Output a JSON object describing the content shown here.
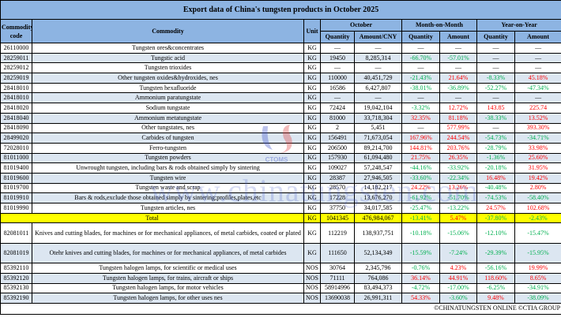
{
  "title": "Export data of China's tungsten products in October 2025",
  "headers": {
    "code": "Commodity code",
    "commodity": "Commodity",
    "unit": "Unit",
    "october": "October",
    "mom": "Month-on-Month",
    "yoy": "Year-on-Year",
    "quantity": "Quantity",
    "amount_cny": "Amount/CNY",
    "amount": "Amount"
  },
  "colors": {
    "header": "#8db4e2",
    "alt_row": "#dce6f1",
    "total": "#ffff00",
    "decrease": "#00b050",
    "increase": "#ff0000"
  },
  "rows": [
    {
      "code": "26110000",
      "commodity": "Tungsten ores&concentrates",
      "unit": "KG",
      "qty": "—",
      "amount": "—",
      "mom_qty": "—",
      "mom_amt": "—",
      "yoy_qty": "—",
      "yoy_amt": "—"
    },
    {
      "code": "28259011",
      "commodity": "Tungstic acid",
      "unit": "KG",
      "qty": "19450",
      "amount": "8,285,314",
      "mom_qty": "-66.70%",
      "mom_amt": "-57.01%",
      "yoy_qty": "—",
      "yoy_amt": "—"
    },
    {
      "code": "28259012",
      "commodity": "Tungsten trioxides",
      "unit": "KG",
      "qty": "—",
      "amount": "—",
      "mom_qty": "—",
      "mom_amt": "—",
      "yoy_qty": "—",
      "yoy_amt": "—"
    },
    {
      "code": "28259019",
      "commodity": "Other tungsten oxides&hydroxides, nes",
      "unit": "KG",
      "qty": "110000",
      "amount": "40,451,729",
      "mom_qty": "-21.43%",
      "mom_amt": "21.64%",
      "yoy_qty": "-8.33%",
      "yoy_amt": "45.18%"
    },
    {
      "code": "28418010",
      "commodity": "Tungsten hexafluoride",
      "unit": "KG",
      "qty": "16586",
      "amount": "6,427,807",
      "mom_qty": "-38.01%",
      "mom_amt": "-36.89%",
      "yoy_qty": "-52.27%",
      "yoy_amt": "-47.34%"
    },
    {
      "code": "28418010",
      "commodity": "Ammonium paratungstate",
      "unit": "KG",
      "qty": "—",
      "amount": "—",
      "mom_qty": "—",
      "mom_amt": "—",
      "yoy_qty": "—",
      "yoy_amt": "—"
    },
    {
      "code": "28418020",
      "commodity": "Sodium tungstate",
      "unit": "KG",
      "qty": "72424",
      "amount": "19,042,104",
      "mom_qty": "-3.32%",
      "mom_amt": "12.72%",
      "yoy_qty": "143.85",
      "yoy_amt": "225.74"
    },
    {
      "code": "28418040",
      "commodity": "Ammonium metatungstate",
      "unit": "KG",
      "qty": "81000",
      "amount": "33,718,304",
      "mom_qty": "32.35%",
      "mom_amt": "81.18%",
      "yoy_qty": "-38.33%",
      "yoy_amt": "13.52%"
    },
    {
      "code": "28418090",
      "commodity": "Other tungstates, nes",
      "unit": "KG",
      "qty": "2",
      "amount": "5,451",
      "mom_qty": "—",
      "mom_amt": "577.99%",
      "yoy_qty": "—",
      "yoy_amt": "393.30%"
    },
    {
      "code": "28499020",
      "commodity": "Carbides of tungsten",
      "unit": "KG",
      "qty": "156491",
      "amount": "71,673,054",
      "mom_qty": "167.96%",
      "mom_amt": "244.54%",
      "yoy_qty": "-54.73%",
      "yoy_amt": "-34.71%"
    },
    {
      "code": "72028010",
      "commodity": "Ferro-tungsten",
      "unit": "KG",
      "qty": "206500",
      "amount": "89,214,700",
      "mom_qty": "144.81%",
      "mom_amt": "203.76%",
      "yoy_qty": "-28.79%",
      "yoy_amt": "33.98%"
    },
    {
      "code": "81011000",
      "commodity": "Tungsten powders",
      "unit": "KG",
      "qty": "157930",
      "amount": "61,094,480",
      "mom_qty": "21.75%",
      "mom_amt": "26.35%",
      "yoy_qty": "-1.36%",
      "yoy_amt": "25.60%"
    },
    {
      "code": "81019400",
      "commodity": "Unwrought tungsten, including bars & rods obtained simply by sintering",
      "unit": "KG",
      "qty": "109027",
      "amount": "57,248,547",
      "mom_qty": "-44.16%",
      "mom_amt": "-33.92%",
      "yoy_qty": "-20.18%",
      "yoy_amt": "31.95%"
    },
    {
      "code": "81019600",
      "commodity": "Tungsten wire",
      "unit": "KG",
      "qty": "28387",
      "amount": "27,946,505",
      "mom_qty": "-33.60%",
      "mom_amt": "-22.34%",
      "yoy_qty": "16.48%",
      "yoy_amt": "19.42%"
    },
    {
      "code": "81019700",
      "commodity": "Tungsten waste and scrap",
      "unit": "KG",
      "qty": "28570",
      "amount": "14,182,217",
      "mom_qty": "24.22%",
      "mom_amt": "13.26%",
      "yoy_qty": "-40.48%",
      "yoy_amt": "2.80%"
    },
    {
      "code": "81019910",
      "commodity": "Bars & rods,exclude those obtained simply by sintering;profiles,plates,etc",
      "unit": "KG",
      "qty": "17228",
      "amount": "13,676,270",
      "mom_qty": "-61.92%",
      "mom_amt": "-51.70%",
      "yoy_qty": "-74.53%",
      "yoy_amt": "-58.40%"
    },
    {
      "code": "81019990",
      "commodity": "Tungsten articles, nes",
      "unit": "KG",
      "qty": "37750",
      "amount": "34,017,585",
      "mom_qty": "-25.47%",
      "mom_amt": "-13.22%",
      "yoy_qty": "24.57%",
      "yoy_amt": "102.68%"
    },
    {
      "total": true,
      "commodity": "Total",
      "unit": "KG",
      "qty": "1041345",
      "amount": "476,984,067",
      "mom_qty": "-13.41%",
      "mom_amt": "5.47%",
      "yoy_qty": "-37.80%",
      "yoy_amt": "-2.43%"
    },
    {
      "tall": true,
      "code": "82081011",
      "commodity": "Knives and cutting blades, for machines or for mechanical appliances, of metal carbides, coated or plated",
      "unit": "KG",
      "qty": "112219",
      "amount": "138,937,751",
      "mom_qty": "-10.18%",
      "mom_amt": "-15.06%",
      "yoy_qty": "-12.10%",
      "yoy_amt": "-15.47%"
    },
    {
      "tall": true,
      "code": "82081019",
      "commodity": "Otehr knives and cutting blades, for machines or for mechanical appliances, of metal carbides",
      "unit": "KG",
      "qty": "111650",
      "amount": "52,134,349",
      "mom_qty": "-15.59%",
      "mom_amt": "-7.24%",
      "yoy_qty": "-29.39%",
      "yoy_amt": "-15.95%"
    },
    {
      "code": "85392110",
      "commodity": "Tungsten halogen lamps, for scientific or medical uses",
      "unit": "NOS",
      "qty": "30764",
      "amount": "2,345,796",
      "mom_qty": "-0.76%",
      "mom_amt": "4.23%",
      "yoy_qty": "-56.16%",
      "yoy_amt": "19.99%"
    },
    {
      "code": "85392120",
      "commodity": "Tungsten halogen lamps, for trains, aircraft or ships",
      "unit": "NOS",
      "qty": "71111",
      "amount": "764,086",
      "mom_qty": "36.14%",
      "mom_amt": "44.91%",
      "yoy_qty": "118.60%",
      "yoy_amt": "8.65%"
    },
    {
      "code": "85392130",
      "commodity": "Tungsten halogen lamps, for motor vehicles",
      "unit": "NOS",
      "qty": "58914996",
      "amount": "83,494,373",
      "mom_qty": "-4.72%",
      "mom_amt": "-17.00%",
      "yoy_qty": "-6.25%",
      "yoy_amt": "-34.91%"
    },
    {
      "code": "85392190",
      "commodity": "Tungsten halogen lamps, for other uses nes",
      "unit": "NOS",
      "qty": "13690038",
      "amount": "26,991,311",
      "mom_qty": "54.33%",
      "mom_amt": "-3.60%",
      "yoy_qty": "9.48%",
      "yoy_amt": "-38.09%"
    }
  ],
  "footer": "©CHINATUNGSTEN ONLINE ©CTIA GROUP",
  "watermark": {
    "text": "www.chinatungsten.com",
    "logo_text": "CTOMS"
  }
}
